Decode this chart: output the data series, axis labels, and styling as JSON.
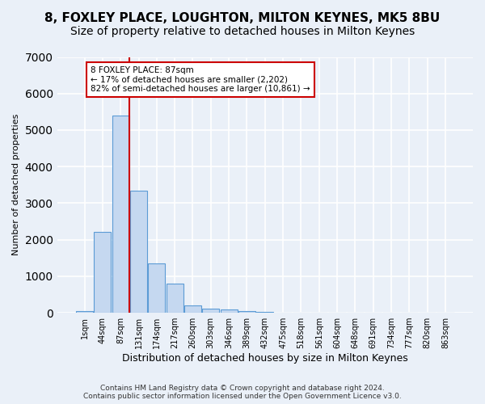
{
  "title": "8, FOXLEY PLACE, LOUGHTON, MILTON KEYNES, MK5 8BU",
  "subtitle": "Size of property relative to detached houses in Milton Keynes",
  "xlabel": "Distribution of detached houses by size in Milton Keynes",
  "ylabel": "Number of detached properties",
  "footer_line1": "Contains HM Land Registry data © Crown copyright and database right 2024.",
  "footer_line2": "Contains public sector information licensed under the Open Government Licence v3.0.",
  "bin_labels": [
    "1sqm",
    "44sqm",
    "87sqm",
    "131sqm",
    "174sqm",
    "217sqm",
    "260sqm",
    "303sqm",
    "346sqm",
    "389sqm",
    "432sqm",
    "475sqm",
    "518sqm",
    "561sqm",
    "604sqm",
    "648sqm",
    "691sqm",
    "734sqm",
    "777sqm",
    "820sqm",
    "863sqm"
  ],
  "bar_heights": [
    50,
    2220,
    5400,
    3350,
    1350,
    800,
    200,
    120,
    80,
    50,
    20,
    5,
    3,
    2,
    1,
    1,
    0,
    0,
    0,
    0,
    0
  ],
  "bar_color": "#c5d8f0",
  "bar_edgecolor": "#5b9bd5",
  "redline_bin": 2,
  "annotation_text": "8 FOXLEY PLACE: 87sqm\n← 17% of detached houses are smaller (2,202)\n82% of semi-detached houses are larger (10,861) →",
  "annotation_box_color": "#ffffff",
  "annotation_box_edgecolor": "#cc0000",
  "redline_color": "#cc0000",
  "ylim": [
    0,
    7000
  ],
  "background_color": "#eaf0f8",
  "plot_background": "#eaf0f8",
  "grid_color": "#ffffff",
  "title_fontsize": 11,
  "subtitle_fontsize": 10
}
